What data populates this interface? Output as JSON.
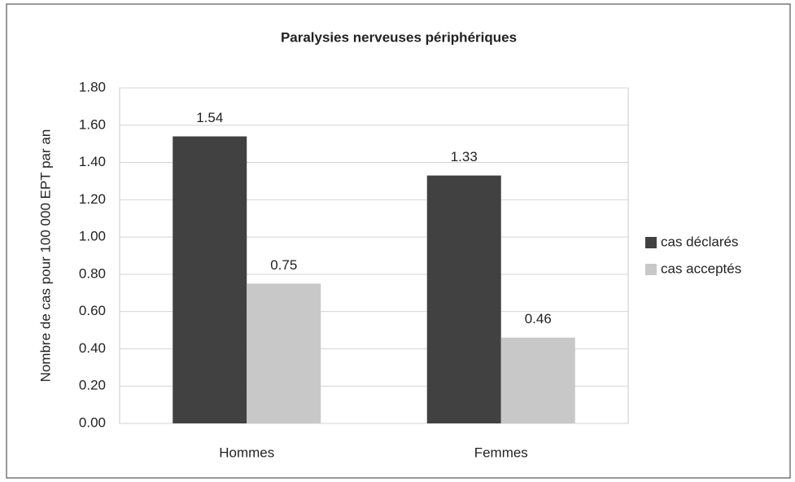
{
  "chart_data": {
    "type": "bar",
    "title": "Paralysies nerveuses périphériques",
    "y_label": "Nombre de cas pour 100 000 EPT par an",
    "categories": [
      "Hommes",
      "Femmes"
    ],
    "series": [
      {
        "name": "cas déclarés",
        "color": "#414141",
        "values": [
          1.54,
          1.33
        ]
      },
      {
        "name": "cas acceptés",
        "color": "#c8c8c8",
        "values": [
          0.75,
          0.46
        ]
      }
    ],
    "ylim": [
      0,
      1.8
    ],
    "yticks": [
      {
        "value": 0,
        "label": "0.00"
      },
      {
        "value": 0.2,
        "label": "0.20"
      },
      {
        "value": 0.4,
        "label": "0.40"
      },
      {
        "value": 0.6,
        "label": "0.60"
      },
      {
        "value": 0.8,
        "label": "0.80"
      },
      {
        "value": 1,
        "label": "1.00"
      },
      {
        "value": 1.2,
        "label": "1.20"
      },
      {
        "value": 1.4,
        "label": "1.40"
      },
      {
        "value": 1.6,
        "label": "1.60"
      },
      {
        "value": 1.8,
        "label": "1.80"
      }
    ],
    "grid": true,
    "legend": "right"
  }
}
